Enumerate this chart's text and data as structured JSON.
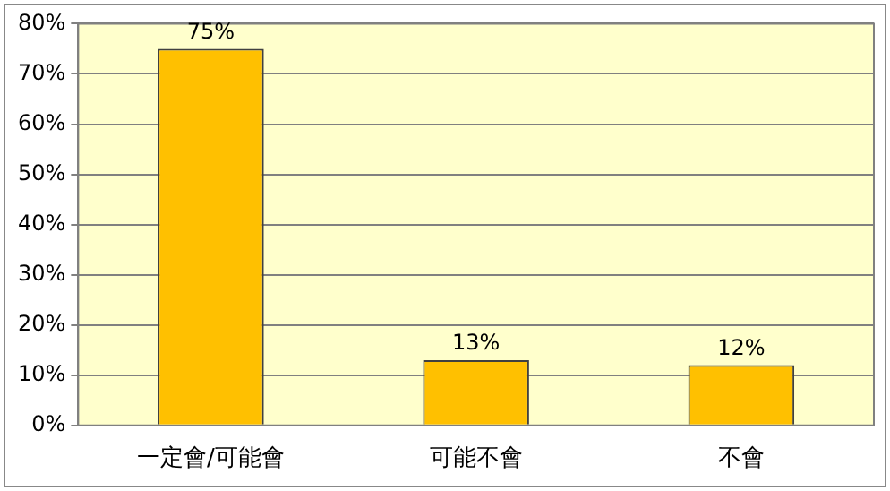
{
  "chart_data": {
    "type": "bar",
    "categories": [
      "一定會/可能會",
      "可能不會",
      "不會"
    ],
    "values": [
      75,
      13,
      12
    ],
    "color": "#ffc000",
    "value_labels": [
      "75%",
      "13%",
      "12%"
    ],
    "ylim": [
      0,
      80
    ],
    "yticks": [
      {
        "value": 0,
        "label": "0%"
      },
      {
        "value": 10,
        "label": "10%"
      },
      {
        "value": 20,
        "label": "20%"
      },
      {
        "value": 30,
        "label": "30%"
      },
      {
        "value": 40,
        "label": "40%"
      },
      {
        "value": 50,
        "label": "50%"
      },
      {
        "value": 60,
        "label": "60%"
      },
      {
        "value": 70,
        "label": "70%"
      },
      {
        "value": 80,
        "label": "80%"
      }
    ],
    "grid": "y",
    "legend": false
  }
}
